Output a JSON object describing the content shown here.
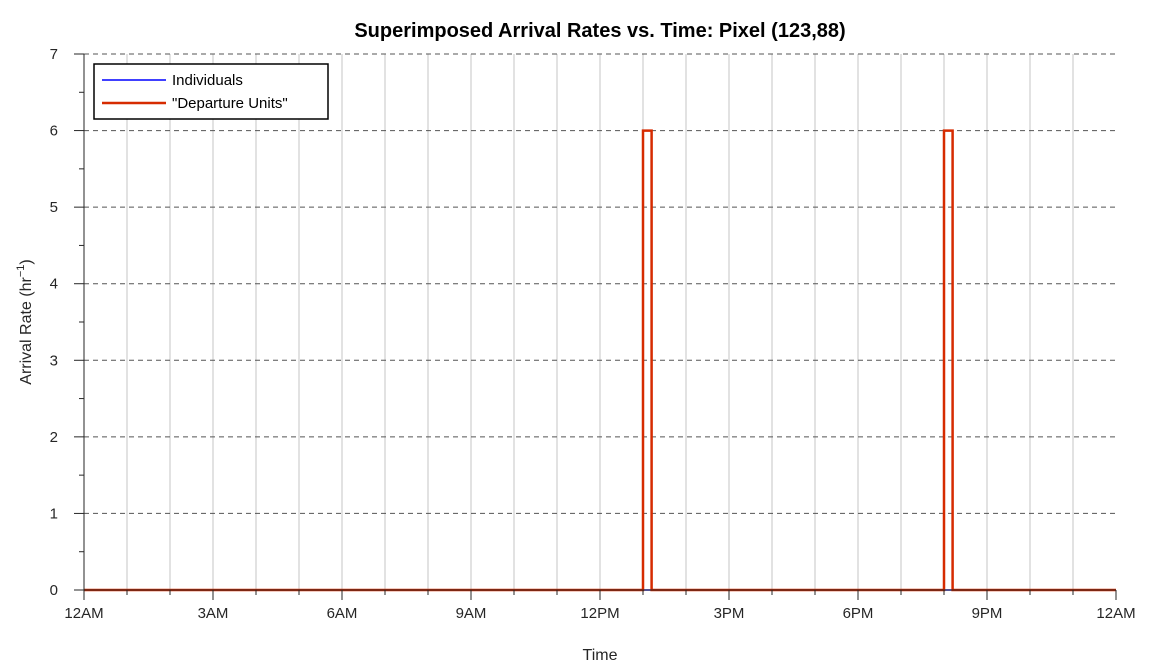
{
  "chart_data": {
    "type": "line",
    "title": "Superimposed Arrival Rates vs. Time: Pixel (123,88)",
    "xlabel": "Time",
    "ylabel": "Arrival Rate (hr",
    "ylabel_superscript": "−1",
    "ylabel_suffix": ")",
    "xlim": [
      0,
      24
    ],
    "ylim": [
      0,
      7
    ],
    "x_ticks": [
      0,
      3,
      6,
      9,
      12,
      15,
      18,
      21,
      24
    ],
    "x_tick_labels": [
      "12AM",
      "3AM",
      "6AM",
      "9AM",
      "12PM",
      "3PM",
      "6PM",
      "9PM",
      "12AM"
    ],
    "x_minor_ticks": [
      1,
      2,
      4,
      5,
      7,
      8,
      10,
      11,
      13,
      14,
      16,
      17,
      19,
      20,
      22,
      23
    ],
    "y_ticks": [
      0,
      1,
      2,
      3,
      4,
      5,
      6,
      7
    ],
    "y_tick_labels": [
      "0",
      "1",
      "2",
      "3",
      "4",
      "5",
      "6",
      "7"
    ],
    "y_minor_ticks": [
      0.5,
      1.5,
      2.5,
      3.5,
      4.5,
      5.5,
      6.5
    ],
    "grid": true,
    "legend_position": "top-left",
    "series": [
      {
        "name": "Individuals",
        "color": "#0000ff",
        "x": [
          0,
          24
        ],
        "y": [
          0,
          0
        ]
      },
      {
        "name": "\"Departure Units\"",
        "color": "#d62b00",
        "x": [
          0,
          13,
          13,
          13.2,
          13.2,
          20,
          20,
          20.2,
          20.2,
          24
        ],
        "y": [
          0,
          0,
          6,
          6,
          0,
          0,
          6,
          6,
          0,
          0
        ]
      }
    ]
  }
}
